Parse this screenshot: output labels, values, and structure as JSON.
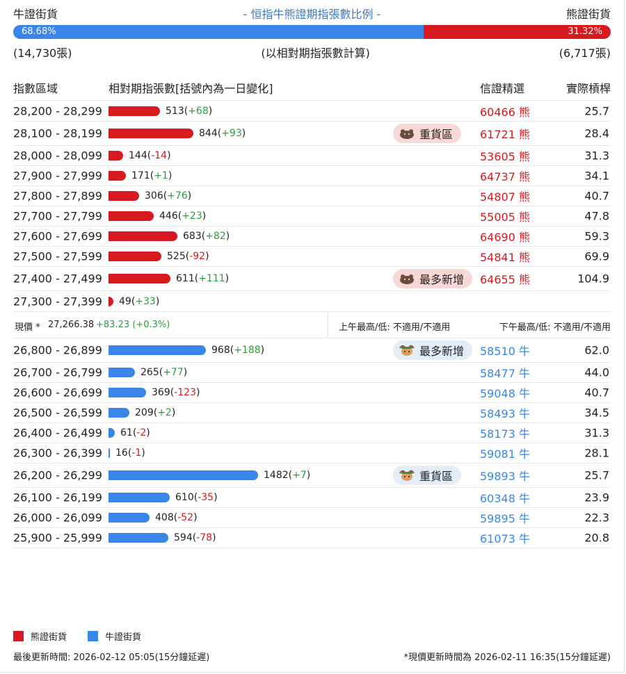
{
  "header": {
    "bull_label": "牛證街貨",
    "bear_label": "熊證街貨",
    "title": "- 恒指牛熊證期指張數比例 -"
  },
  "ratio": {
    "bull_pct": 68.68,
    "bull_pct_label": "68.68%",
    "bear_pct_label": "31.32%",
    "bull_count": "(14,730張)",
    "bear_count": "(6,717張)",
    "basis": "(以相對期指張數計算)"
  },
  "columns": {
    "range": "指數區域",
    "qty": "相對期指張數[括號內為一日變化]",
    "warrant": "信證精選",
    "leverage": "實際槓桿"
  },
  "bear_rows": [
    {
      "range": "28,200 - 28,299",
      "qty": 513,
      "qty_label": "513",
      "chg": "+68",
      "warrant": "60466 熊",
      "lev": "25.7",
      "badge": ""
    },
    {
      "range": "28,100 - 28,199",
      "qty": 844,
      "qty_label": "844",
      "chg": "+93",
      "warrant": "61721 熊",
      "lev": "28.4",
      "badge": "重貨區"
    },
    {
      "range": "28,000 - 28,099",
      "qty": 144,
      "qty_label": "144",
      "chg": "-14",
      "warrant": "53605 熊",
      "lev": "31.3",
      "badge": ""
    },
    {
      "range": "27,900 - 27,999",
      "qty": 171,
      "qty_label": "171",
      "chg": "+1",
      "warrant": "64737 熊",
      "lev": "34.1",
      "badge": ""
    },
    {
      "range": "27,800 - 27,899",
      "qty": 306,
      "qty_label": "306",
      "chg": "+76",
      "warrant": "54807 熊",
      "lev": "40.7",
      "badge": ""
    },
    {
      "range": "27,700 - 27,799",
      "qty": 446,
      "qty_label": "446",
      "chg": "+23",
      "warrant": "55005 熊",
      "lev": "47.8",
      "badge": ""
    },
    {
      "range": "27,600 - 27,699",
      "qty": 683,
      "qty_label": "683",
      "chg": "+82",
      "warrant": "64690 熊",
      "lev": "59.3",
      "badge": ""
    },
    {
      "range": "27,500 - 27,599",
      "qty": 525,
      "qty_label": "525",
      "chg": "-92",
      "warrant": "54841 熊",
      "lev": "69.9",
      "badge": ""
    },
    {
      "range": "27,400 - 27,499",
      "qty": 611,
      "qty_label": "611",
      "chg": "+111",
      "warrant": "64655 熊",
      "lev": "104.9",
      "badge": "最多新增"
    },
    {
      "range": "27,300 - 27,399",
      "qty": 49,
      "qty_label": "49",
      "chg": "+33",
      "warrant": "",
      "lev": "",
      "badge": ""
    }
  ],
  "price": {
    "label": "現價 *",
    "value": "27,266.38",
    "change": "+83.23 (+0.3%)",
    "am": "上午最高/低: 不適用/不適用",
    "pm": "下午最高/低: 不適用/不適用"
  },
  "bull_rows": [
    {
      "range": "26,800 - 26,899",
      "qty": 968,
      "qty_label": "968",
      "chg": "+188",
      "warrant": "58510 牛",
      "lev": "62.0",
      "badge": "最多新增"
    },
    {
      "range": "26,700 - 26,799",
      "qty": 265,
      "qty_label": "265",
      "chg": "+77",
      "warrant": "58477 牛",
      "lev": "44.0",
      "badge": ""
    },
    {
      "range": "26,600 - 26,699",
      "qty": 369,
      "qty_label": "369",
      "chg": "-123",
      "warrant": "59048 牛",
      "lev": "40.7",
      "badge": ""
    },
    {
      "range": "26,500 - 26,599",
      "qty": 209,
      "qty_label": "209",
      "chg": "+2",
      "warrant": "58493 牛",
      "lev": "34.5",
      "badge": ""
    },
    {
      "range": "26,400 - 26,499",
      "qty": 61,
      "qty_label": "61",
      "chg": "-2",
      "warrant": "58173 牛",
      "lev": "31.3",
      "badge": ""
    },
    {
      "range": "26,300 - 26,399",
      "qty": 16,
      "qty_label": "16",
      "chg": "-1",
      "warrant": "59081 牛",
      "lev": "28.1",
      "badge": ""
    },
    {
      "range": "26,200 - 26,299",
      "qty": 1482,
      "qty_label": "1482",
      "chg": "+7",
      "warrant": "59893 牛",
      "lev": "25.7",
      "badge": "重貨區"
    },
    {
      "range": "26,100 - 26,199",
      "qty": 610,
      "qty_label": "610",
      "chg": "-35",
      "warrant": "60348 牛",
      "lev": "23.9",
      "badge": ""
    },
    {
      "range": "26,000 - 26,099",
      "qty": 408,
      "qty_label": "408",
      "chg": "-52",
      "warrant": "59895 牛",
      "lev": "22.3",
      "badge": ""
    },
    {
      "range": "25,900 - 25,999",
      "qty": 594,
      "qty_label": "594",
      "chg": "-78",
      "warrant": "61073 牛",
      "lev": "20.8",
      "badge": ""
    }
  ],
  "legend": {
    "bear": "熊證街貨",
    "bull": "牛證街貨"
  },
  "footer": {
    "updated": "最後更新時間: 2026-02-12 05:05(15分鐘延遲)",
    "price_updated": "*現價更新時間為 2026-02-11 16:35(15分鐘延遲)"
  },
  "colors": {
    "bear": "#d71920",
    "bull": "#3a86e8",
    "positive": "#2a9d3a"
  }
}
